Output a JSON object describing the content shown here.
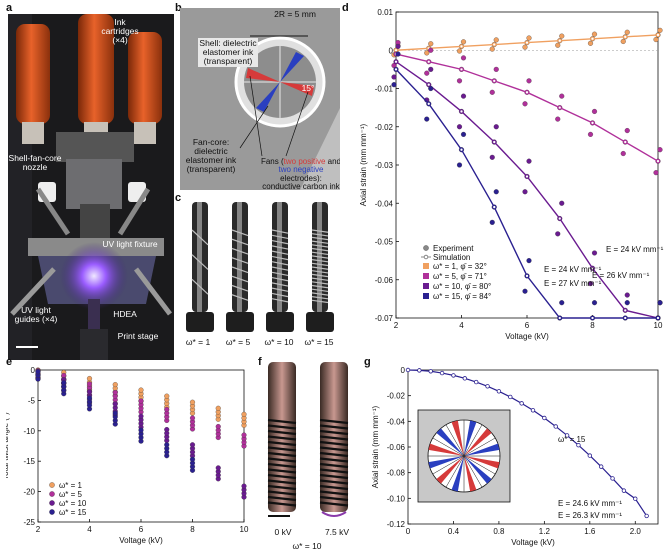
{
  "panel_labels": {
    "a": "a",
    "b": "b",
    "c": "c",
    "d": "d",
    "e": "e",
    "f": "f",
    "g": "g"
  },
  "panel_a": {
    "ink_cartridges": "Ink cartridges (×4)",
    "nozzle": "Shell-fan-core nozzle",
    "uv_fixture": "UV light fixture",
    "uv_guides": "UV light guides (×4)",
    "hdea": "HDEA",
    "print_stage": "Print stage"
  },
  "panel_b": {
    "diameter": "2R = 5 mm",
    "shell": "Shell: dielectric elastomer ink (transparent)",
    "angle": "15°",
    "fan_core": "Fan-core: dielectric elastomer ink (transparent)",
    "fans_prefix": "Fans (",
    "fans_positive": "two positive",
    "fans_and": " and ",
    "fans_negative": "two negative",
    "fans_suffix": " electrodes): conductive carbon ink (black)"
  },
  "panel_c": {
    "labels": [
      "ω* = 1",
      "ω* = 5",
      "ω* = 10",
      "ω* = 15"
    ]
  },
  "panel_f": {
    "v0": "0 kV",
    "v1": "7.5 kV",
    "omega": "ω* = 10"
  },
  "colors": {
    "w1": "#f0a060",
    "w5": "#b0309a",
    "w10": "#6a1b90",
    "w15": "#2a2090",
    "positive": "#d63a3a",
    "negative": "#2a3fc0"
  },
  "chart_data": [
    {
      "id": "d",
      "type": "scatter",
      "xlabel": "Voltage (kV)",
      "ylabel": "Axial strain (mm mm⁻¹)",
      "xlim": [
        2,
        10
      ],
      "ylim": [
        -0.07,
        0.01
      ],
      "xticks": [
        "2",
        "4",
        "6",
        "8",
        "10"
      ],
      "yticks": [
        "0.01",
        "0",
        "-0.01",
        "-0.02",
        "-0.03",
        "-0.04",
        "-0.05",
        "-0.06",
        "-0.07"
      ],
      "legend_markers": [
        "Experiment",
        "Simulation"
      ],
      "series": [
        {
          "name": "ω* = 1, φ̄ = 32°",
          "x": [
            2,
            3,
            4,
            5,
            6,
            7,
            8,
            9,
            10
          ],
          "sim": [
            0,
            0.0005,
            0.001,
            0.0015,
            0.002,
            0.0025,
            0.003,
            0.0035,
            0.004
          ]
        },
        {
          "name": "ω* = 5, φ̄ = 71°",
          "x": [
            2,
            3,
            4,
            5,
            6,
            7,
            8,
            9,
            10
          ],
          "sim": [
            -0.001,
            -0.003,
            -0.005,
            -0.008,
            -0.011,
            -0.015,
            -0.019,
            -0.024,
            -0.029
          ]
        },
        {
          "name": "ω* = 10, φ̄ = 80°",
          "x": [
            2,
            3,
            4,
            5,
            6,
            7,
            8,
            9,
            10
          ],
          "sim": [
            -0.003,
            -0.009,
            -0.016,
            -0.024,
            -0.033,
            -0.044,
            -0.057,
            -0.068,
            -0.07
          ]
        },
        {
          "name": "ω* = 15, φ̄ = 84°",
          "x": [
            2,
            3,
            4,
            5,
            6,
            7,
            8,
            9,
            10
          ],
          "sim": [
            -0.005,
            -0.014,
            -0.026,
            -0.041,
            -0.059,
            -0.07,
            -0.07,
            -0.07,
            -0.07
          ]
        }
      ],
      "annotations": [
        "E = 24 kV mm⁻¹",
        "E = 27 kV mm⁻¹",
        "E = 24 kV mm⁻¹",
        "E = 26 kV mm⁻¹"
      ]
    },
    {
      "id": "e",
      "type": "scatter",
      "xlabel": "Voltage (kV)",
      "ylabel": "Total twist angle (°)",
      "xlim": [
        2,
        10
      ],
      "ylim": [
        -25,
        0
      ],
      "xticks": [
        "2",
        "4",
        "6",
        "8",
        "10"
      ],
      "yticks": [
        "0",
        "-5",
        "-10",
        "-15",
        "-20",
        "-25"
      ],
      "series": [
        {
          "name": "ω* = 1",
          "x": [
            2,
            3,
            4,
            5,
            6,
            7,
            8,
            9,
            10
          ],
          "mean": [
            -0.3,
            -1.3,
            -2.3,
            -3.3,
            -4.2,
            -5.2,
            -6.2,
            -7.2,
            -8.2
          ]
        },
        {
          "name": "ω* = 5",
          "x": [
            2,
            3,
            4,
            5,
            6,
            7,
            8,
            9,
            10
          ],
          "mean": [
            -0.4,
            -1.8,
            -3.2,
            -4.6,
            -6.0,
            -7.4,
            -8.8,
            -10.2,
            -11.6
          ]
        },
        {
          "name": "ω* = 10",
          "x": [
            2,
            3,
            4,
            5,
            6,
            7,
            8,
            9,
            10
          ],
          "mean": [
            -0.5,
            -2.5,
            -4.5,
            -6.5,
            -8.5,
            -10.7,
            -13.2,
            -17,
            -20
          ]
        },
        {
          "name": "ω* = 15",
          "x": [
            2,
            3,
            4,
            5,
            6,
            7,
            8
          ],
          "mean": [
            -0.6,
            -3.0,
            -5.5,
            -8.0,
            -10.8,
            -13.2,
            -15.6
          ]
        }
      ]
    },
    {
      "id": "g",
      "type": "line",
      "xlabel": "Voltage (kV)",
      "ylabel": "Axial strain (mm mm⁻¹)",
      "xlim": [
        0,
        2.2
      ],
      "ylim": [
        -0.12,
        0
      ],
      "xticks": [
        "0",
        "0.4",
        "0.8",
        "1.2",
        "1.6",
        "2.0"
      ],
      "yticks": [
        "0",
        "-0.02",
        "-0.04",
        "-0.06",
        "-0.08",
        "-0.10",
        "-0.12"
      ],
      "series": [
        {
          "name": "ω* = 15",
          "x": [
            0,
            0.1,
            0.2,
            0.3,
            0.4,
            0.5,
            0.6,
            0.7,
            0.8,
            0.9,
            1.0,
            1.1,
            1.2,
            1.3,
            1.4,
            1.5,
            1.6,
            1.7,
            1.8,
            1.9,
            2.0,
            2.1
          ],
          "y": [
            0,
            -0.0003,
            -0.001,
            -0.0024,
            -0.0042,
            -0.0065,
            -0.0094,
            -0.0127,
            -0.0166,
            -0.021,
            -0.026,
            -0.0314,
            -0.0374,
            -0.044,
            -0.051,
            -0.0586,
            -0.0667,
            -0.0753,
            -0.0845,
            -0.094,
            -0.1003,
            -0.1137
          ]
        }
      ],
      "annotations": [
        "E = 24.6 kV mm⁻¹",
        "E = 26.3 kV mm⁻¹"
      ]
    }
  ]
}
